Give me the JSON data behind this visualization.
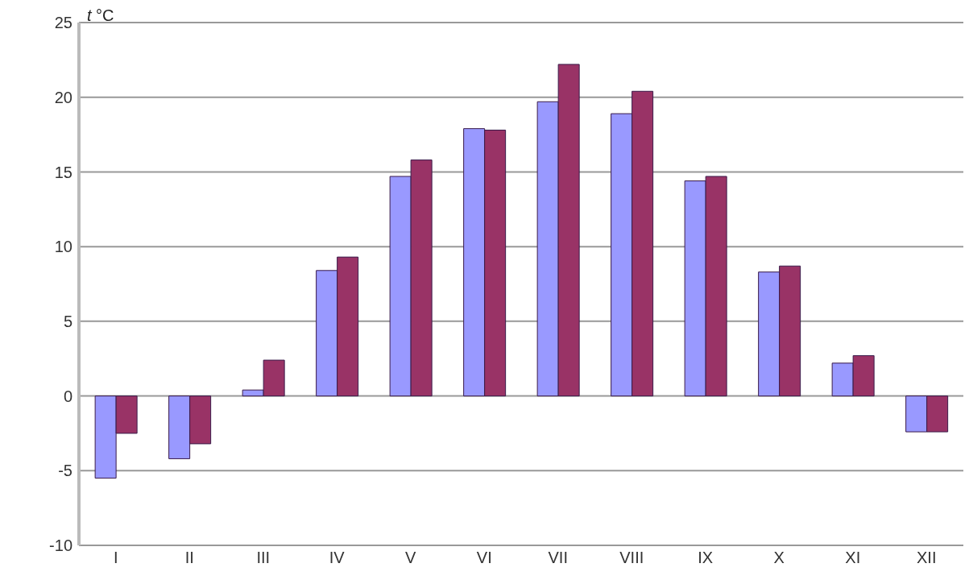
{
  "chart_data": {
    "type": "bar",
    "ylabel": "t °C",
    "categories": [
      "I",
      "II",
      "III",
      "IV",
      "V",
      "VI",
      "VII",
      "VIII",
      "IX",
      "X",
      "XI",
      "XII"
    ],
    "series": [
      {
        "color": "#9999ff",
        "values": [
          -5.5,
          -4.2,
          0.4,
          8.4,
          14.7,
          17.9,
          19.7,
          18.9,
          14.4,
          8.3,
          2.2,
          -2.4
        ]
      },
      {
        "color": "#993366",
        "values": [
          -2.5,
          -3.2,
          2.4,
          9.3,
          15.8,
          17.8,
          22.2,
          20.4,
          14.7,
          8.7,
          2.7,
          -2.4
        ]
      }
    ],
    "ylim": [
      -10,
      25
    ],
    "yticks": [
      -10,
      -5,
      0,
      5,
      10,
      15,
      20,
      25
    ],
    "grid": "y"
  }
}
